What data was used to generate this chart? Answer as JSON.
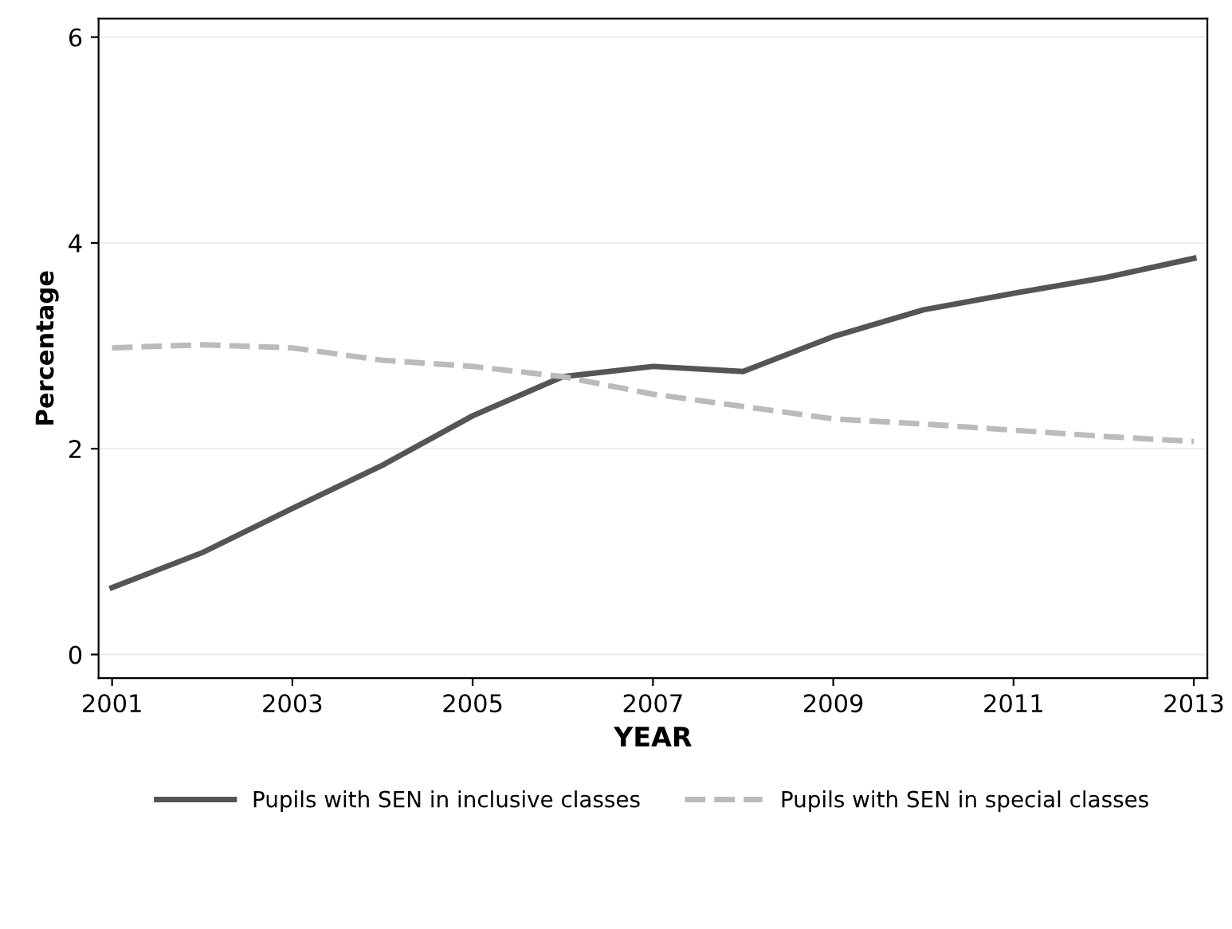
{
  "chart_data": {
    "type": "line",
    "xlabel": "YEAR",
    "ylabel": "Percentage",
    "x": [
      2001,
      2002,
      2003,
      2004,
      2005,
      2006,
      2007,
      2008,
      2009,
      2010,
      2011,
      2012,
      2013
    ],
    "series": [
      {
        "name": "Pupils with SEN in inclusive classes",
        "color": "#555555",
        "line_style": "solid",
        "values": [
          0.65,
          0.99,
          1.42,
          1.84,
          2.32,
          2.7,
          2.8,
          2.75,
          3.09,
          3.35,
          3.51,
          3.66,
          3.85
        ]
      },
      {
        "name": "Pupils with SEN in special classes",
        "color": "#bbbbbb",
        "line_style": "dashed",
        "values": [
          2.98,
          3.01,
          2.98,
          2.86,
          2.8,
          2.7,
          2.53,
          2.41,
          2.29,
          2.24,
          2.18,
          2.12,
          2.07
        ]
      }
    ],
    "xlim": [
      2000.85,
      2013.15
    ],
    "ylim": [
      -0.23,
      6.18
    ],
    "xticks": [
      2001,
      2003,
      2005,
      2007,
      2009,
      2011,
      2013
    ],
    "yticks": [
      0,
      2,
      4,
      6
    ],
    "grid": "y",
    "legend": "bottom",
    "marker": "none"
  }
}
